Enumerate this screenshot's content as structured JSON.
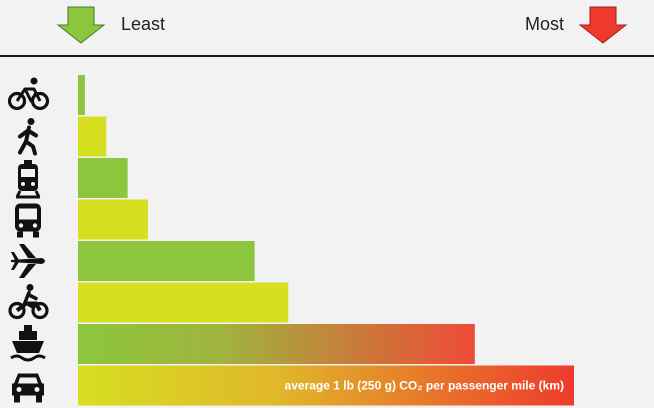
{
  "header": {
    "least_label": "Least",
    "most_label": "Most",
    "least_color": "#8cc63f",
    "most_color": "#ee3a2c"
  },
  "chart_data": {
    "type": "bar",
    "orientation": "horizontal",
    "categories": [
      "bicycle",
      "walking",
      "train",
      "bus",
      "airplane",
      "motorcycle",
      "ship",
      "car"
    ],
    "icons": [
      "bicycle-icon",
      "walking-icon",
      "train-icon",
      "bus-icon",
      "airplane-icon",
      "motorcycle-icon",
      "ship-icon",
      "car-icon"
    ],
    "values": [
      0.014,
      0.057,
      0.1,
      0.141,
      0.356,
      0.424,
      0.8,
      1.0
    ],
    "colors": [
      "#8cc63f",
      "#d7df21",
      "#8cc63f",
      "#d7df21",
      "#8cc63f",
      "#d7df21",
      "gradient-green-red",
      "gradient-yellow-red"
    ],
    "xlim": [
      0,
      1
    ],
    "annotation": "average 1 lb (250 g) CO₂ per passenger mile (km)",
    "grid": false
  }
}
